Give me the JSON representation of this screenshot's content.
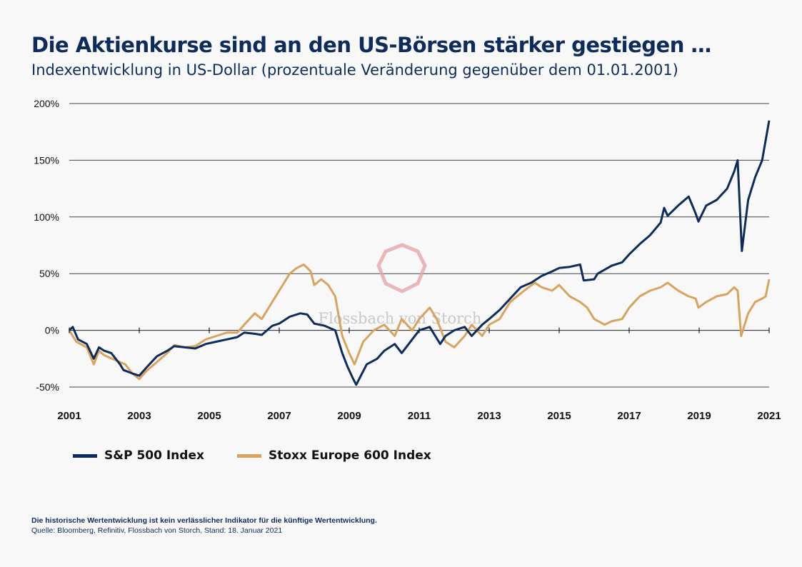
{
  "header": {
    "title": "Die Aktienkurse sind an den US-Börsen stärker gestiegen …",
    "subtitle": "Indexentwicklung in US-Dollar (prozentuale Veränderung gegenüber dem 01.01.2001)"
  },
  "watermark": "Flossbach von Storch",
  "colors": {
    "sp500": "#0d2c5c",
    "stoxx": "#d9a35f",
    "watermark": "#e3a3a3"
  },
  "legend": {
    "sp500": "S&P 500 Index",
    "stoxx": "Stoxx Europe 600 Index"
  },
  "footer": {
    "disclaimer": "Die historische Wertentwicklung ist kein verlässlicher Indikator für die künftige Wertentwicklung.",
    "source": "Quelle: Bloomberg, Refinitiv, Flossbach von Storch, Stand: 18. Januar 2021"
  },
  "chart_data": {
    "type": "line",
    "title": "",
    "xlabel": "",
    "ylabel": "",
    "xlim": [
      2001,
      2021
    ],
    "ylim": [
      -50,
      200
    ],
    "grid": "horizontal",
    "legend_position": "bottom",
    "y_ticks": [
      "-50%",
      "0%",
      "50%",
      "100%",
      "150%",
      "200%"
    ],
    "x_ticks": [
      "2001",
      "2003",
      "2005",
      "2007",
      "2009",
      "2011",
      "2013",
      "2015",
      "2017",
      "2019",
      "2021"
    ],
    "series": [
      {
        "name": "S&P 500 Index",
        "x": [
          2001.0,
          2001.1,
          2001.25,
          2001.5,
          2001.7,
          2001.85,
          2002.0,
          2002.2,
          2002.45,
          2002.55,
          2002.8,
          2003.0,
          2003.2,
          2003.5,
          2003.8,
          2004.0,
          2004.3,
          2004.6,
          2004.9,
          2005.2,
          2005.5,
          2005.8,
          2006.0,
          2006.3,
          2006.5,
          2006.8,
          2007.0,
          2007.3,
          2007.6,
          2007.8,
          2008.0,
          2008.3,
          2008.6,
          2008.8,
          2008.95,
          2009.1,
          2009.2,
          2009.5,
          2009.8,
          2010.0,
          2010.3,
          2010.5,
          2010.8,
          2011.0,
          2011.3,
          2011.6,
          2011.75,
          2012.0,
          2012.3,
          2012.5,
          2012.8,
          2013.0,
          2013.3,
          2013.6,
          2013.9,
          2014.2,
          2014.5,
          2014.8,
          2015.0,
          2015.3,
          2015.6,
          2015.7,
          2016.0,
          2016.1,
          2016.5,
          2016.8,
          2017.0,
          2017.3,
          2017.6,
          2017.9,
          2018.0,
          2018.1,
          2018.4,
          2018.7,
          2018.9,
          2018.98,
          2019.2,
          2019.5,
          2019.8,
          2020.0,
          2020.1,
          2020.22,
          2020.4,
          2020.6,
          2020.8,
          2021.0
        ],
        "values": [
          0,
          3,
          -8,
          -12,
          -25,
          -15,
          -18,
          -20,
          -30,
          -35,
          -38,
          -40,
          -33,
          -23,
          -18,
          -14,
          -15,
          -16,
          -12,
          -10,
          -8,
          -6,
          -2,
          -3,
          -4,
          4,
          6,
          12,
          15,
          14,
          6,
          4,
          0,
          -20,
          -32,
          -42,
          -48,
          -30,
          -25,
          -18,
          -12,
          -20,
          -8,
          0,
          3,
          -12,
          -5,
          0,
          3,
          -5,
          5,
          10,
          18,
          28,
          38,
          42,
          48,
          52,
          55,
          56,
          58,
          44,
          45,
          50,
          57,
          60,
          67,
          76,
          84,
          95,
          108,
          101,
          110,
          118,
          103,
          96,
          110,
          115,
          125,
          140,
          150,
          70,
          115,
          135,
          150,
          185
        ]
      },
      {
        "name": "Stoxx Europe 600 Index",
        "x": [
          2001.0,
          2001.2,
          2001.5,
          2001.7,
          2001.85,
          2002.0,
          2002.3,
          2002.6,
          2002.8,
          2003.0,
          2003.2,
          2003.5,
          2003.8,
          2004.0,
          2004.3,
          2004.6,
          2004.9,
          2005.2,
          2005.5,
          2005.8,
          2006.0,
          2006.3,
          2006.5,
          2006.8,
          2007.0,
          2007.3,
          2007.5,
          2007.7,
          2007.9,
          2008.0,
          2008.2,
          2008.4,
          2008.6,
          2008.8,
          2009.0,
          2009.15,
          2009.4,
          2009.7,
          2010.0,
          2010.3,
          2010.5,
          2010.8,
          2011.0,
          2011.3,
          2011.5,
          2011.75,
          2012.0,
          2012.3,
          2012.5,
          2012.8,
          2013.0,
          2013.3,
          2013.6,
          2014.0,
          2014.3,
          2014.5,
          2014.8,
          2015.0,
          2015.3,
          2015.6,
          2015.8,
          2016.0,
          2016.3,
          2016.5,
          2016.8,
          2017.0,
          2017.3,
          2017.6,
          2017.9,
          2018.0,
          2018.1,
          2018.4,
          2018.7,
          2018.9,
          2018.98,
          2019.2,
          2019.5,
          2019.8,
          2020.0,
          2020.1,
          2020.2,
          2020.4,
          2020.6,
          2020.8,
          2020.9,
          2021.0
        ],
        "values": [
          0,
          -10,
          -15,
          -30,
          -18,
          -22,
          -26,
          -30,
          -38,
          -43,
          -36,
          -28,
          -20,
          -13,
          -15,
          -14,
          -8,
          -5,
          -2,
          -2,
          5,
          15,
          10,
          25,
          35,
          50,
          55,
          58,
          52,
          40,
          45,
          40,
          30,
          -5,
          -20,
          -30,
          -10,
          0,
          5,
          -5,
          10,
          0,
          10,
          20,
          10,
          -10,
          -15,
          -5,
          5,
          -5,
          5,
          10,
          25,
          35,
          42,
          38,
          35,
          40,
          30,
          25,
          20,
          10,
          5,
          8,
          10,
          20,
          30,
          35,
          38,
          40,
          42,
          35,
          30,
          28,
          20,
          25,
          30,
          32,
          38,
          35,
          -5,
          15,
          25,
          28,
          30,
          45
        ]
      }
    ]
  }
}
